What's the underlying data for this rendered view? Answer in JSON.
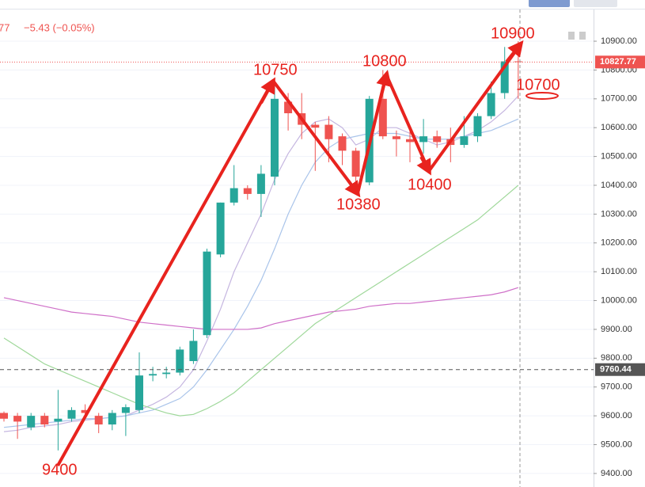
{
  "header": {
    "price_tail": "77",
    "change": "−5.43 (−0.05%)"
  },
  "chart_data": {
    "type": "candlestick",
    "ylim": [
      9353,
      11010
    ],
    "yticks": [
      {
        "value": 9400,
        "label": "9400.00"
      },
      {
        "value": 9500,
        "label": "9500.00"
      },
      {
        "value": 9600,
        "label": "9600.00"
      },
      {
        "value": 9700,
        "label": "9700.00"
      },
      {
        "value": 9800,
        "label": "9800.00"
      },
      {
        "value": 9900,
        "label": "9900.00"
      },
      {
        "value": 10000,
        "label": "10000.00"
      },
      {
        "value": 10100,
        "label": "10100.00"
      },
      {
        "value": 10200,
        "label": "10200.00"
      },
      {
        "value": 10300,
        "label": "10300.00"
      },
      {
        "value": 10400,
        "label": "10400.00"
      },
      {
        "value": 10500,
        "label": "10500.00"
      },
      {
        "value": 10600,
        "label": "10600.00"
      },
      {
        "value": 10700,
        "label": "10700.00"
      },
      {
        "value": 10800,
        "label": "10800.00"
      },
      {
        "value": 10900,
        "label": "10900.00"
      }
    ],
    "grid": true,
    "up_color": "#26a69a",
    "down_color": "#ef5350",
    "open": [
      9610,
      9600,
      9560,
      9600,
      9580,
      9590,
      9620,
      9600,
      9570,
      9610,
      9620,
      9740,
      9745,
      9750,
      9790,
      9880,
      10160,
      10340,
      10390,
      10370,
      10430,
      10690,
      10650,
      10610,
      10610,
      10570,
      10520,
      10410,
      10700,
      10570,
      10560,
      10550,
      10570,
      10560,
      10540,
      10570,
      10640,
      10720,
      10830
    ],
    "high": [
      9615,
      9610,
      9610,
      9610,
      9690,
      9630,
      9640,
      9610,
      9620,
      9640,
      9820,
      9770,
      9770,
      9840,
      9900,
      10180,
      10340,
      10470,
      10400,
      10470,
      10760,
      10720,
      10720,
      10620,
      10640,
      10580,
      10530,
      10710,
      10800,
      10590,
      10600,
      10630,
      10590,
      10600,
      10640,
      10650,
      10760,
      10880,
      10900
    ],
    "low": [
      9580,
      9520,
      9550,
      9560,
      9480,
      9580,
      9590,
      9540,
      9550,
      9530,
      9610,
      9720,
      9730,
      9740,
      9780,
      9870,
      10150,
      10330,
      10350,
      10290,
      10400,
      10590,
      10560,
      10450,
      10480,
      10470,
      10400,
      10400,
      10560,
      10500,
      10480,
      10510,
      10530,
      10480,
      10530,
      10550,
      10630,
      10700,
      10700
    ],
    "close": [
      9590,
      9580,
      9600,
      9570,
      9590,
      9620,
      9610,
      9570,
      9610,
      9630,
      9740,
      9745,
      9750,
      9830,
      9860,
      10170,
      10340,
      10390,
      10370,
      10440,
      10700,
      10650,
      10610,
      10600,
      10560,
      10520,
      10430,
      10700,
      10570,
      10560,
      10550,
      10570,
      10550,
      10540,
      10570,
      10640,
      10720,
      10830,
      10827.77
    ],
    "series": [
      {
        "color": "#c5b6e0",
        "values": [
          9545,
          9550,
          9560,
          9565,
          9570,
          9580,
          9585,
          9590,
          9595,
          9600,
          9620,
          9640,
          9665,
          9700,
          9760,
          9860,
          9970,
          10100,
          10200,
          10300,
          10420,
          10510,
          10580,
          10620,
          10630,
          10600,
          10540,
          10560,
          10600,
          10600,
          10580,
          10560,
          10540,
          10550,
          10570,
          10590,
          10620,
          10660,
          10710
        ]
      },
      {
        "color": "#a9c4ea",
        "values": [
          9560,
          9565,
          9570,
          9575,
          9580,
          9585,
          9590,
          9590,
          9595,
          9600,
          9610,
          9620,
          9640,
          9660,
          9700,
          9760,
          9830,
          9900,
          9980,
          10070,
          10180,
          10300,
          10400,
          10480,
          10530,
          10560,
          10570,
          10580,
          10580,
          10580,
          10570,
          10560,
          10560,
          10560,
          10570,
          10580,
          10590,
          10610,
          10630
        ]
      },
      {
        "color": "#9fd89a",
        "values": [
          9870,
          9840,
          9810,
          9780,
          9760,
          9740,
          9720,
          9700,
          9680,
          9660,
          9640,
          9625,
          9610,
          9600,
          9605,
          9625,
          9650,
          9680,
          9720,
          9760,
          9800,
          9840,
          9880,
          9920,
          9950,
          9980,
          10010,
          10040,
          10070,
          10100,
          10130,
          10160,
          10190,
          10220,
          10250,
          10280,
          10320,
          10360,
          10400
        ]
      },
      {
        "color": "#cf6fc8",
        "values": [
          10010,
          10000,
          9990,
          9980,
          9970,
          9960,
          9955,
          9950,
          9945,
          9935,
          9925,
          9920,
          9915,
          9910,
          9905,
          9900,
          9900,
          9900,
          9900,
          9905,
          9920,
          9930,
          9940,
          9950,
          9960,
          9965,
          9970,
          9980,
          9985,
          9990,
          9990,
          9995,
          10000,
          10005,
          10010,
          10015,
          10020,
          10030,
          10045
        ]
      }
    ],
    "price_lines": [
      {
        "value": 10827.77,
        "color": "#ef5350"
      },
      {
        "value": 9760.44,
        "color": "#555555"
      }
    ],
    "annotations": [
      {
        "text": "10750"
      },
      {
        "text": "10800"
      },
      {
        "text": "10900"
      },
      {
        "text": "10700"
      },
      {
        "text": "10380"
      },
      {
        "text": "10400"
      },
      {
        "text": "9400"
      }
    ]
  }
}
